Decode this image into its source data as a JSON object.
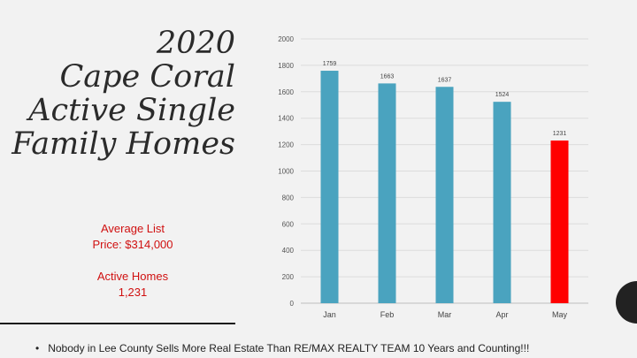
{
  "title_lines": [
    "2020",
    "Cape Coral",
    "Active Single",
    "Family Homes"
  ],
  "stats": {
    "avg_list_line1": "Average List",
    "avg_list_line2": "Price: $314,000",
    "active_line1": "Active Homes",
    "active_line2": "1,231"
  },
  "footer": {
    "bullet": "•",
    "text": "Nobody in Lee County Sells More Real Estate Than RE/MAX REALTY TEAM  10 Years and Counting!!!"
  },
  "colors": {
    "bar": "#4aa3bf",
    "highlight": "#ff0000",
    "title": "#2b2b2b",
    "stats": "#d01010"
  },
  "chart_data": {
    "type": "bar",
    "categories": [
      "Jan",
      "Feb",
      "Mar",
      "Apr",
      "May"
    ],
    "values": [
      1759,
      1663,
      1637,
      1524,
      1231
    ],
    "data_labels": [
      "1759",
      "1663",
      "1637",
      "1524",
      "1231"
    ],
    "highlight_index": 4,
    "ylim": [
      0,
      2000
    ],
    "yticks": [
      0,
      200,
      400,
      600,
      800,
      1000,
      1200,
      1400,
      1600,
      1800,
      2000
    ],
    "grid": true,
    "legend": "none"
  }
}
